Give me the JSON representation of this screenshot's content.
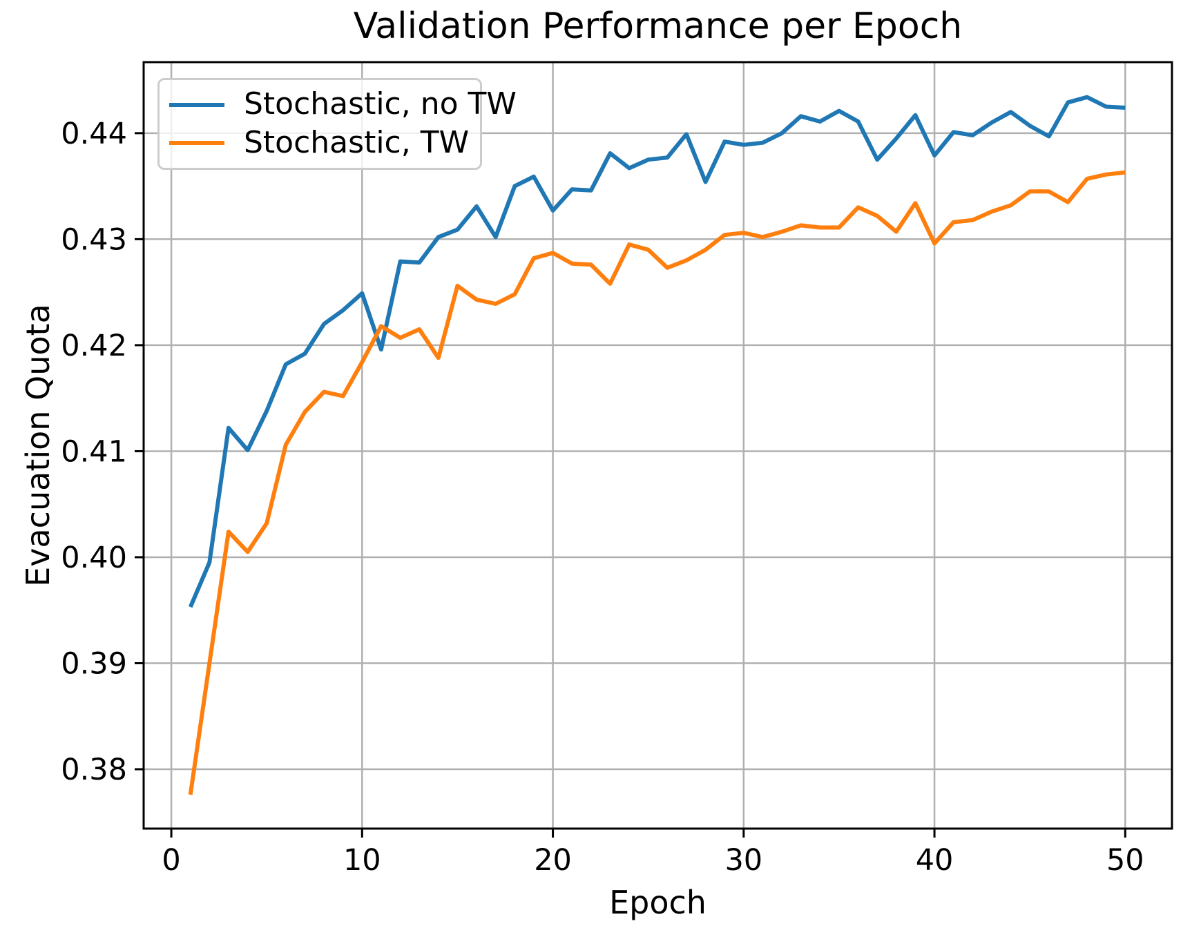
{
  "chart_data": {
    "type": "line",
    "title": "Validation Performance per Epoch",
    "xlabel": "Epoch",
    "ylabel": "Evacuation Quota",
    "xlim": [
      -1.45,
      52.45
    ],
    "ylim": [
      0.3744,
      0.4467
    ],
    "xticks": [
      0,
      10,
      20,
      30,
      40,
      50
    ],
    "xtick_labels": [
      "0",
      "10",
      "20",
      "30",
      "40",
      "50"
    ],
    "yticks": [
      0.38,
      0.39,
      0.4,
      0.41,
      0.42,
      0.43,
      0.44
    ],
    "ytick_labels": [
      "0.38",
      "0.39",
      "0.40",
      "0.41",
      "0.42",
      "0.43",
      "0.44"
    ],
    "grid": true,
    "legend_position": "upper-left",
    "x": [
      1,
      2,
      3,
      4,
      5,
      6,
      7,
      8,
      9,
      10,
      11,
      12,
      13,
      14,
      15,
      16,
      17,
      18,
      19,
      20,
      21,
      22,
      23,
      24,
      25,
      26,
      27,
      28,
      29,
      30,
      31,
      32,
      33,
      34,
      35,
      36,
      37,
      38,
      39,
      40,
      41,
      42,
      43,
      44,
      45,
      46,
      47,
      48,
      49,
      50
    ],
    "series": [
      {
        "name": "Stochastic, no TW",
        "color": "#1f77b4",
        "values": [
          0.3953,
          0.3995,
          0.4122,
          0.4101,
          0.4138,
          0.4182,
          0.4192,
          0.422,
          0.4233,
          0.4249,
          0.4196,
          0.4279,
          0.4278,
          0.4302,
          0.4309,
          0.4331,
          0.4302,
          0.435,
          0.4359,
          0.4327,
          0.4347,
          0.4346,
          0.4381,
          0.4367,
          0.4375,
          0.4377,
          0.4399,
          0.4354,
          0.4392,
          0.4389,
          0.4391,
          0.44,
          0.4416,
          0.4411,
          0.4421,
          0.4411,
          0.4375,
          0.4395,
          0.4417,
          0.4379,
          0.4401,
          0.4398,
          0.441,
          0.442,
          0.4407,
          0.4397,
          0.4429,
          0.4434,
          0.4425,
          0.4424
        ]
      },
      {
        "name": "Stochastic, TW",
        "color": "#ff7f0e",
        "values": [
          0.3776,
          0.39,
          0.4024,
          0.4005,
          0.4032,
          0.4106,
          0.4137,
          0.4156,
          0.4152,
          0.4184,
          0.4218,
          0.4207,
          0.4215,
          0.4188,
          0.4256,
          0.4243,
          0.4239,
          0.4248,
          0.4282,
          0.4287,
          0.4277,
          0.4276,
          0.4258,
          0.4295,
          0.429,
          0.4273,
          0.428,
          0.429,
          0.4304,
          0.4306,
          0.4302,
          0.4307,
          0.4313,
          0.4311,
          0.4311,
          0.433,
          0.4322,
          0.4307,
          0.4334,
          0.4296,
          0.4316,
          0.4318,
          0.4326,
          0.4332,
          0.4345,
          0.4345,
          0.4335,
          0.4357,
          0.4361,
          0.4363
        ]
      }
    ],
    "colors": {
      "grid": "#b0b0b0",
      "spine": "#000000",
      "text": "#000000",
      "legend_border": "#cccccc"
    }
  }
}
